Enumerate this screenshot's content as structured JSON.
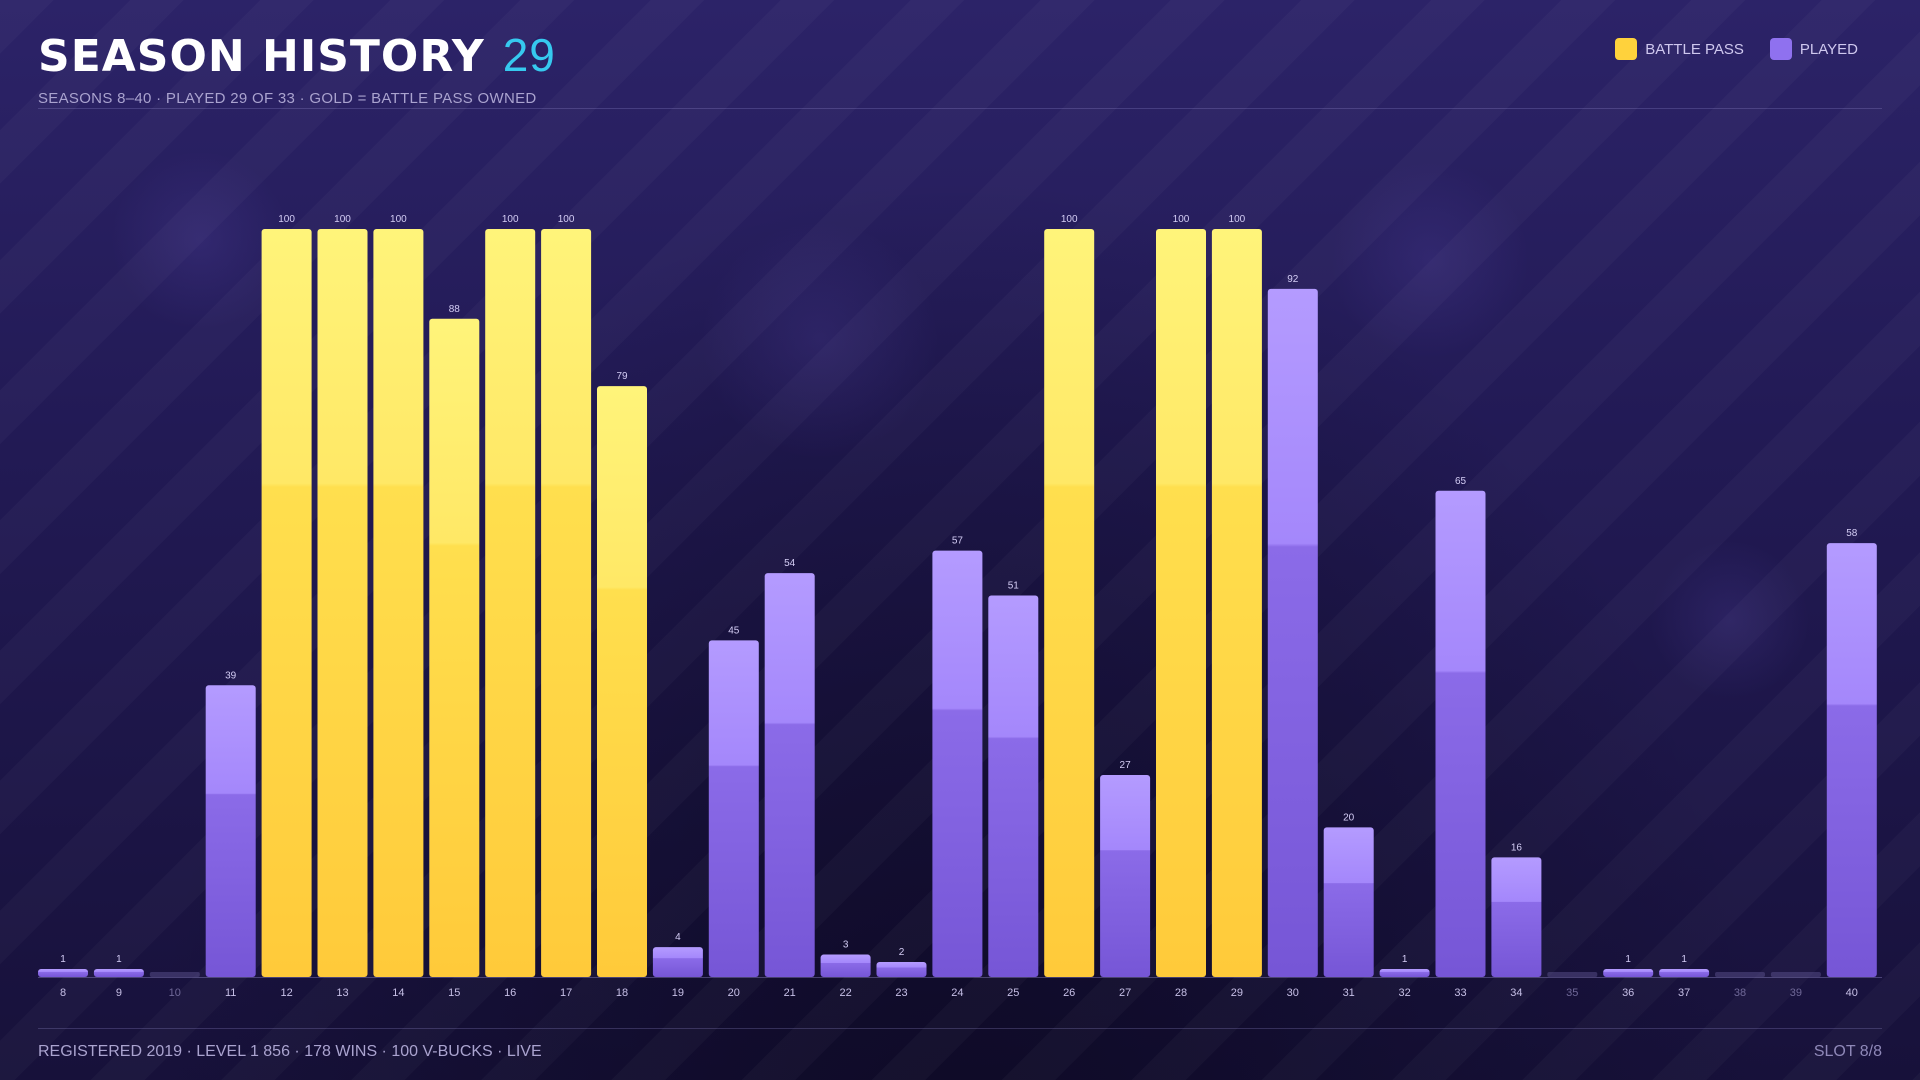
{
  "header": {
    "title": "SEASON HISTORY",
    "count": "29",
    "subtitle": "SEASONS 8–40 · PLAYED 29 OF 33 · GOLD = BATTLE PASS OWNED"
  },
  "legend": {
    "battle_pass": "BATTLE PASS",
    "played": "PLAYED"
  },
  "colors": {
    "battle_pass": "#ffd23c",
    "played": "#8f71ef",
    "count_accent": "#36c9ef"
  },
  "chart_data": {
    "type": "bar",
    "categories": [
      "8",
      "9",
      "10",
      "11",
      "12",
      "13",
      "14",
      "15",
      "16",
      "17",
      "18",
      "19",
      "20",
      "21",
      "22",
      "23",
      "24",
      "25",
      "26",
      "27",
      "28",
      "29",
      "30",
      "31",
      "32",
      "33",
      "34",
      "35",
      "36",
      "37",
      "38",
      "39",
      "40"
    ],
    "series": [
      {
        "name": "PLAYED",
        "values": [
          1,
          1,
          0,
          39,
          100,
          100,
          100,
          88,
          100,
          100,
          79,
          4,
          45,
          54,
          3,
          2,
          57,
          51,
          100,
          27,
          100,
          100,
          92,
          20,
          1,
          65,
          16,
          0,
          1,
          1,
          0,
          0,
          58
        ]
      }
    ],
    "battle_pass": [
      false,
      false,
      false,
      false,
      true,
      true,
      true,
      true,
      true,
      true,
      true,
      false,
      false,
      false,
      false,
      false,
      false,
      false,
      true,
      false,
      true,
      true,
      false,
      false,
      false,
      false,
      false,
      false,
      false,
      false,
      false,
      false,
      false
    ],
    "played": [
      true,
      true,
      false,
      true,
      true,
      true,
      true,
      true,
      true,
      true,
      true,
      true,
      true,
      true,
      true,
      true,
      true,
      true,
      true,
      true,
      true,
      true,
      true,
      true,
      true,
      true,
      true,
      false,
      true,
      true,
      false,
      false,
      true
    ],
    "ylim": [
      0,
      100
    ],
    "grid": false,
    "legend_position": "top-right"
  },
  "footer": {
    "stats": "REGISTERED 2019 · LEVEL 1 856 · 178 WINS · 100 V-BUCKS · LIVE",
    "slot": "SLOT 8/8"
  }
}
